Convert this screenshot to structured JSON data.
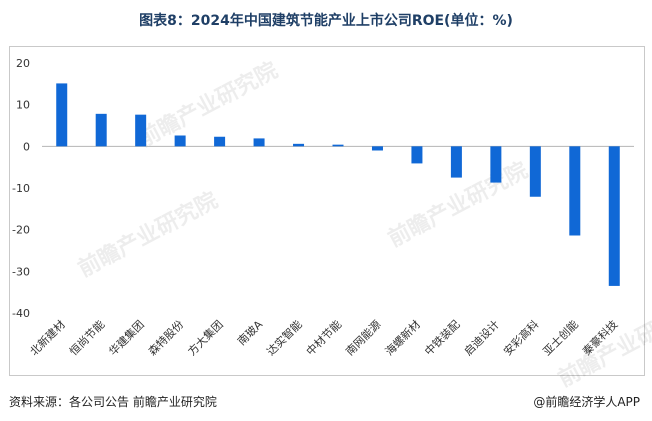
{
  "title": "图表8：2024年中国建筑节能产业上市公司ROE(单位：%)",
  "source": "资料来源：各公司公告 前瞻产业研究院",
  "brand": "@前瞻经济学人APP",
  "watermark": "前瞻产业研究院",
  "chart_data": {
    "type": "bar",
    "title": "图表8：2024年中国建筑节能产业上市公司ROE(单位：%)",
    "categories": [
      "北新建材",
      "恒尚节能",
      "华建集团",
      "森特股份",
      "方大集团",
      "南玻A",
      "达实智能",
      "中材节能",
      "南网能源",
      "海螺新材",
      "中铁装配",
      "启迪设计",
      "安彩高科",
      "亚士创能",
      "秦豪科技"
    ],
    "values": [
      15.1,
      7.8,
      7.6,
      2.6,
      2.3,
      1.9,
      0.6,
      0.4,
      -1.0,
      -4.1,
      -7.5,
      -8.7,
      -12.1,
      -21.4,
      -33.5
    ],
    "ylim": [
      -40,
      20
    ],
    "yticks": [
      20,
      10,
      0,
      -10,
      -20,
      -30,
      -40
    ],
    "bar_color": "#1068d6",
    "grid": false,
    "xlabel": "",
    "ylabel": ""
  }
}
